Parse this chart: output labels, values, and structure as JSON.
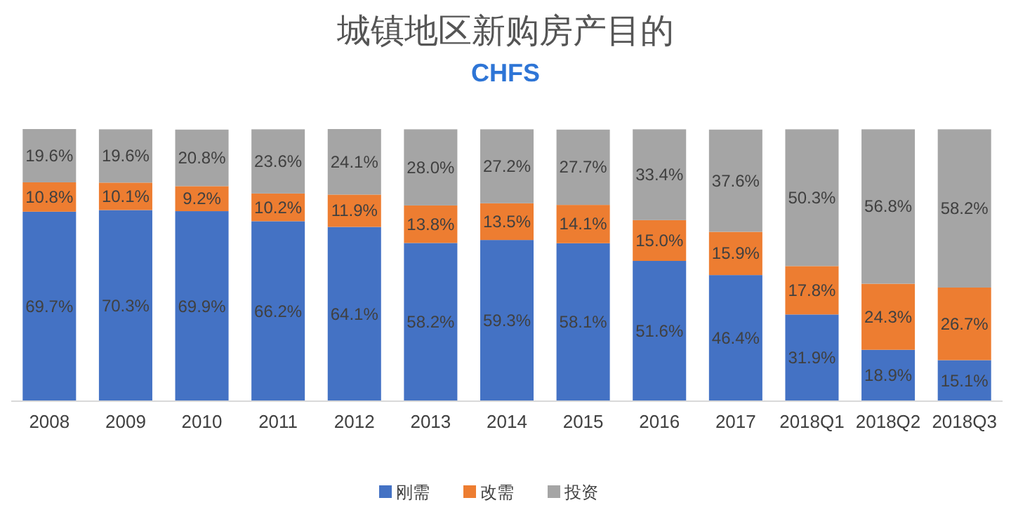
{
  "chart_data": {
    "type": "bar",
    "title": "城镇地区新购房产目的",
    "subtitle": "CHFS",
    "stacked": true,
    "legend": "bottom",
    "categories": [
      "2008",
      "2009",
      "2010",
      "2011",
      "2012",
      "2013",
      "2014",
      "2015",
      "2016",
      "2017",
      "2018Q1",
      "2018Q2",
      "2018Q3"
    ],
    "series": [
      {
        "name": "刚需",
        "color": "#4472c4",
        "values": [
          69.7,
          70.3,
          69.9,
          66.2,
          64.1,
          58.2,
          59.3,
          58.1,
          51.6,
          46.4,
          31.9,
          18.9,
          15.1
        ],
        "value_labels": [
          "69.7%",
          "70.3%",
          "69.9%",
          "66.2%",
          "64.1%",
          "58.2%",
          "59.3%",
          "58.1%",
          "51.6%",
          "46.4%",
          "31.9%",
          "18.9%",
          "15.1%"
        ]
      },
      {
        "name": "改需",
        "color": "#ed7d31",
        "values": [
          10.8,
          10.1,
          9.2,
          10.2,
          11.9,
          13.8,
          13.5,
          14.1,
          15.0,
          15.9,
          17.8,
          24.3,
          26.7
        ],
        "value_labels": [
          "10.8%",
          "10.1%",
          "9.2%",
          "10.2%",
          "11.9%",
          "13.8%",
          "13.5%",
          "14.1%",
          "15.0%",
          "15.9%",
          "17.8%",
          "24.3%",
          "26.7%"
        ]
      },
      {
        "name": "投资",
        "color": "#a5a5a5",
        "values": [
          19.6,
          19.6,
          20.8,
          23.6,
          24.1,
          28.0,
          27.2,
          27.7,
          33.4,
          37.6,
          50.3,
          56.8,
          58.2
        ],
        "value_labels": [
          "19.6%",
          "19.6%",
          "20.8%",
          "23.6%",
          "24.1%",
          "28.0%",
          "27.2%",
          "27.7%",
          "33.4%",
          "37.6%",
          "50.3%",
          "56.8%",
          "58.2%"
        ]
      }
    ]
  }
}
